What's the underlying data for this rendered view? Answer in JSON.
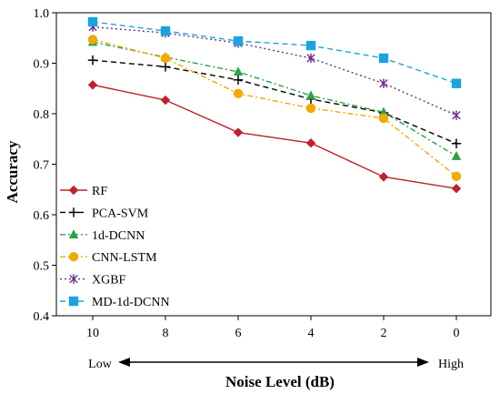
{
  "chart_data": {
    "type": "line",
    "xlabel": "Noise Level (dB)",
    "ylabel": "Accuracy",
    "categories": [
      "10",
      "8",
      "6",
      "4",
      "2",
      "0"
    ],
    "ylim": [
      0.4,
      1.0
    ],
    "yticks": [
      "0.4",
      "0.5",
      "0.6",
      "0.7",
      "0.8",
      "0.9",
      "1.0"
    ],
    "x_end_labels": {
      "left": "Low",
      "right": "High"
    },
    "legend_position": "left",
    "grid": false,
    "series": [
      {
        "name": "RF",
        "values": [
          0.857,
          0.827,
          0.763,
          0.742,
          0.675,
          0.652
        ],
        "color": "#c0202a",
        "marker": "diamond",
        "dash": "solid"
      },
      {
        "name": "PCA-SVM",
        "values": [
          0.906,
          0.893,
          0.867,
          0.829,
          0.802,
          0.741
        ],
        "color": "#000000",
        "marker": "plus",
        "dash": "dashed"
      },
      {
        "name": "1d-DCNN",
        "values": [
          0.942,
          0.912,
          0.883,
          0.836,
          0.803,
          0.716
        ],
        "color": "#2ea043",
        "marker": "triangle",
        "dash": "dashdot"
      },
      {
        "name": "CNN-LSTM",
        "values": [
          0.947,
          0.91,
          0.84,
          0.811,
          0.791,
          0.676
        ],
        "color": "#f2a900",
        "marker": "circle",
        "dash": "dashdot"
      },
      {
        "name": "XGBF",
        "values": [
          0.972,
          0.96,
          0.94,
          0.91,
          0.86,
          0.797
        ],
        "color": "#6a2c91",
        "marker": "asterisk",
        "dash": "dotted"
      },
      {
        "name": "MD-1d-DCNN",
        "values": [
          0.982,
          0.964,
          0.944,
          0.935,
          0.91,
          0.86
        ],
        "color": "#1aa3e0",
        "marker": "square",
        "dash": "dashed"
      }
    ]
  }
}
